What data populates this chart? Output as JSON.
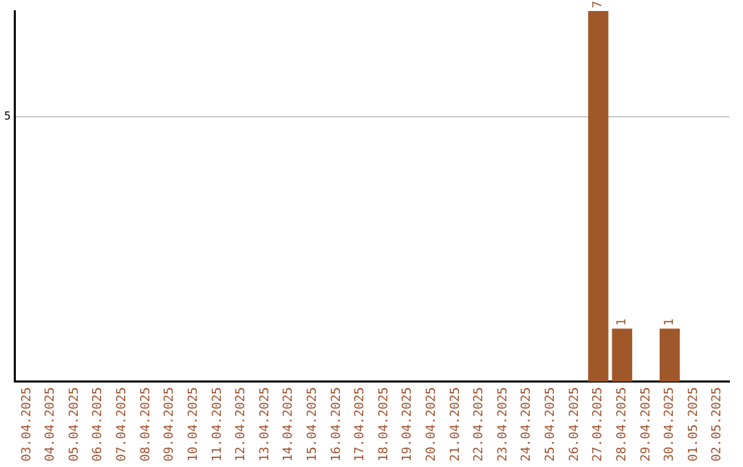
{
  "chart_data": {
    "type": "bar",
    "categories": [
      "03.04.2025",
      "04.04.2025",
      "05.04.2025",
      "06.04.2025",
      "07.04.2025",
      "08.04.2025",
      "09.04.2025",
      "10.04.2025",
      "11.04.2025",
      "12.04.2025",
      "13.04.2025",
      "14.04.2025",
      "15.04.2025",
      "16.04.2025",
      "17.04.2025",
      "18.04.2025",
      "19.04.2025",
      "20.04.2025",
      "21.04.2025",
      "22.04.2025",
      "23.04.2025",
      "24.04.2025",
      "25.04.2025",
      "26.04.2025",
      "27.04.2025",
      "28.04.2025",
      "29.04.2025",
      "30.04.2025",
      "01.05.2025",
      "02.05.2025"
    ],
    "values": [
      null,
      null,
      null,
      null,
      null,
      null,
      null,
      null,
      null,
      null,
      null,
      null,
      null,
      null,
      null,
      null,
      null,
      null,
      null,
      null,
      null,
      null,
      null,
      null,
      7,
      1,
      null,
      1,
      null,
      null
    ],
    "color": "#a0582a",
    "ylim": [
      0,
      7
    ],
    "yticks": [
      5
    ],
    "grid": "y",
    "legend": false,
    "data_labels": true
  }
}
